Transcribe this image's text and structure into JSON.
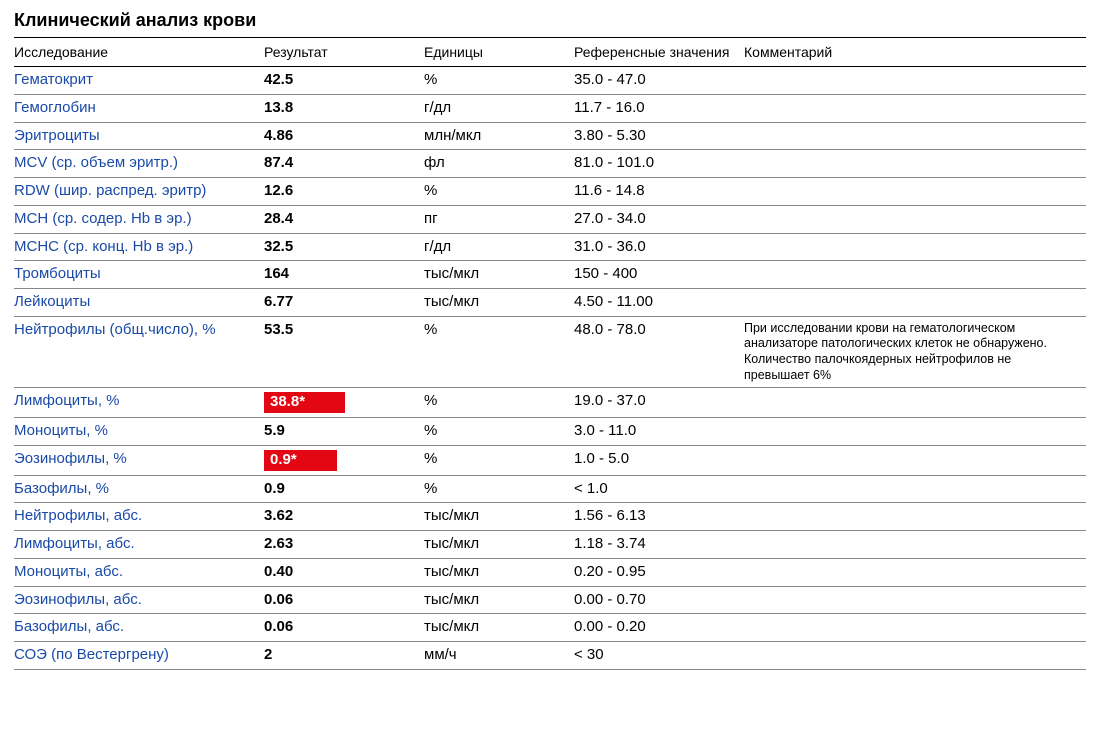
{
  "title": "Клинический анализ крови",
  "columns": {
    "test": "Исследование",
    "result": "Результат",
    "units": "Единицы",
    "reference": "Референсные значения",
    "comment": "Комментарий"
  },
  "flag_bg_color": "#e30613",
  "flag_text_color": "#ffffff",
  "link_color": "#1a4aa8",
  "rows": [
    {
      "test": "Гематокрит",
      "result": "42.5",
      "flagged": false,
      "units": "%",
      "reference": "35.0 - 47.0",
      "comment": ""
    },
    {
      "test": "Гемоглобин",
      "result": "13.8",
      "flagged": false,
      "units": "г/дл",
      "reference": "11.7 - 16.0",
      "comment": ""
    },
    {
      "test": "Эритроциты",
      "result": "4.86",
      "flagged": false,
      "units": "млн/мкл",
      "reference": "3.80 - 5.30",
      "comment": ""
    },
    {
      "test": "MCV (ср. объем эритр.)",
      "result": "87.4",
      "flagged": false,
      "units": "фл",
      "reference": "81.0 - 101.0",
      "comment": ""
    },
    {
      "test": "RDW (шир. распред. эритр)",
      "result": "12.6",
      "flagged": false,
      "units": "%",
      "reference": "11.6 - 14.8",
      "comment": ""
    },
    {
      "test": "MCH (ср. содер. Hb в эр.)",
      "result": "28.4",
      "flagged": false,
      "units": "пг",
      "reference": "27.0 - 34.0",
      "comment": ""
    },
    {
      "test": "MCHC (ср. конц. Hb в эр.)",
      "result": "32.5",
      "flagged": false,
      "units": "г/дл",
      "reference": "31.0 - 36.0",
      "comment": ""
    },
    {
      "test": "Тромбоциты",
      "result": "164",
      "flagged": false,
      "units": "тыс/мкл",
      "reference": "150 - 400",
      "comment": ""
    },
    {
      "test": "Лейкоциты",
      "result": "6.77",
      "flagged": false,
      "units": "тыс/мкл",
      "reference": "4.50 - 11.00",
      "comment": ""
    },
    {
      "test": "Нейтрофилы (общ.число), %",
      "result": "53.5",
      "flagged": false,
      "units": "%",
      "reference": "48.0 - 78.0",
      "comment": "При исследовании крови на гематологическом анализаторе патологических клеток не обнаружено. Количество палочкоядерных нейтрофилов не превышает 6%"
    },
    {
      "test": "Лимфоциты, %",
      "result": "38.8*",
      "flagged": true,
      "units": "%",
      "reference": "19.0 - 37.0",
      "comment": ""
    },
    {
      "test": "Моноциты, %",
      "result": "5.9",
      "flagged": false,
      "units": "%",
      "reference": "3.0 - 11.0",
      "comment": ""
    },
    {
      "test": "Эозинофилы, %",
      "result": "0.9*",
      "flagged": true,
      "units": "%",
      "reference": "1.0 - 5.0",
      "comment": ""
    },
    {
      "test": "Базофилы, %",
      "result": "0.9",
      "flagged": false,
      "units": "%",
      "reference": "< 1.0",
      "comment": ""
    },
    {
      "test": "Нейтрофилы, абс.",
      "result": "3.62",
      "flagged": false,
      "units": "тыс/мкл",
      "reference": "1.56 - 6.13",
      "comment": ""
    },
    {
      "test": "Лимфоциты, абс.",
      "result": "2.63",
      "flagged": false,
      "units": "тыс/мкл",
      "reference": "1.18 - 3.74",
      "comment": ""
    },
    {
      "test": "Моноциты, абс.",
      "result": "0.40",
      "flagged": false,
      "units": "тыс/мкл",
      "reference": "0.20 - 0.95",
      "comment": ""
    },
    {
      "test": "Эозинофилы, абс.",
      "result": "0.06",
      "flagged": false,
      "units": "тыс/мкл",
      "reference": "0.00 - 0.70",
      "comment": ""
    },
    {
      "test": "Базофилы, абс.",
      "result": "0.06",
      "flagged": false,
      "units": "тыс/мкл",
      "reference": "0.00 - 0.20",
      "comment": ""
    },
    {
      "test": "СОЭ (по Вестергрену)",
      "result": "2",
      "flagged": false,
      "units": "мм/ч",
      "reference": "< 30",
      "comment": ""
    }
  ]
}
